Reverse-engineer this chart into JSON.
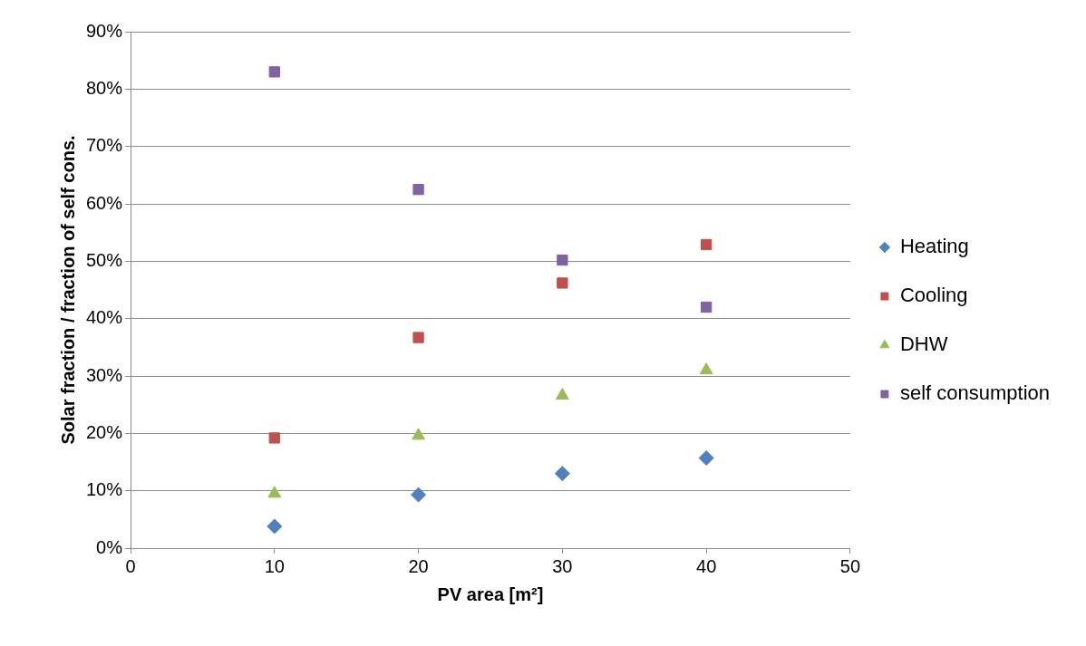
{
  "chart_data": {
    "type": "scatter",
    "xlabel": "PV area [m²]",
    "ylabel": "Solar fraction / fraction of self cons.",
    "x": [
      10,
      20,
      30,
      40
    ],
    "series": [
      {
        "name": "Heating",
        "color": "#4f81bd",
        "marker": "diamond",
        "values": [
          3.8,
          9.3,
          13,
          15.7
        ]
      },
      {
        "name": "Cooling",
        "color": "#c0504d",
        "marker": "square",
        "values": [
          19.2,
          36.7,
          46.2,
          52.9
        ]
      },
      {
        "name": "DHW",
        "color": "#9bbb59",
        "marker": "triangle",
        "values": [
          9.5,
          19.6,
          26.6,
          31
        ]
      },
      {
        "name": "self consumption",
        "color": "#8064a2",
        "marker": "square",
        "values": [
          83,
          62.5,
          50.2,
          42
        ]
      }
    ],
    "xlim": [
      0,
      50
    ],
    "xticks": [
      0,
      10,
      20,
      30,
      40,
      50
    ],
    "ylim": [
      0,
      90
    ],
    "yticks": [
      {
        "value": 0,
        "label": "0%"
      },
      {
        "value": 10,
        "label": "10%"
      },
      {
        "value": 20,
        "label": "20%"
      },
      {
        "value": 30,
        "label": "30%"
      },
      {
        "value": 40,
        "label": "40%"
      },
      {
        "value": 50,
        "label": "50%"
      },
      {
        "value": 60,
        "label": "60%"
      },
      {
        "value": 70,
        "label": "70%"
      },
      {
        "value": 80,
        "label": "80%"
      },
      {
        "value": 90,
        "label": "90%"
      }
    ],
    "grid": "y",
    "legend": "right"
  }
}
